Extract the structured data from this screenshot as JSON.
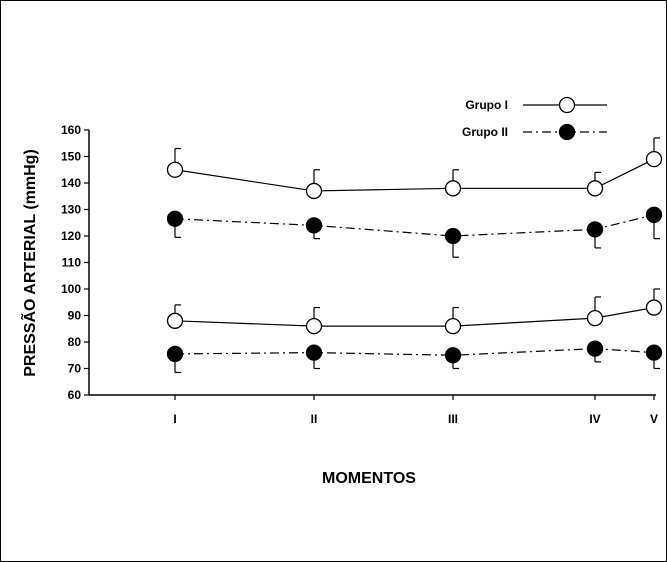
{
  "chart_data": {
    "type": "line",
    "categories": [
      "I",
      "II",
      "III",
      "IV",
      "V"
    ],
    "xlabel": "MOMENTOS",
    "ylabel": "PRESSÃO ARTERIAL (mmHg)",
    "ylim": [
      60,
      160
    ],
    "yticks": [
      60,
      70,
      80,
      90,
      100,
      110,
      120,
      130,
      140,
      150,
      160
    ],
    "grid": false,
    "legend_position": "top-right",
    "series": [
      {
        "name": "Grupo I",
        "group": "Grupo I",
        "level": "upper",
        "marker": "open-circle",
        "line": "solid",
        "values": [
          145,
          137,
          138,
          138,
          149
        ],
        "error_up": [
          8,
          8,
          7,
          6,
          8
        ]
      },
      {
        "name": "Grupo II",
        "group": "Grupo II",
        "level": "upper",
        "marker": "filled-circle",
        "line": "dash-dot",
        "values": [
          126.5,
          124,
          120,
          122.5,
          128
        ],
        "error_down": [
          7,
          5,
          8,
          7,
          9
        ]
      },
      {
        "name": "Grupo I",
        "group": "Grupo I",
        "level": "lower",
        "marker": "open-circle",
        "line": "solid",
        "values": [
          88,
          86,
          86,
          89,
          93
        ],
        "error_up": [
          6,
          7,
          7,
          8,
          7
        ]
      },
      {
        "name": "Grupo II",
        "group": "Grupo II",
        "level": "lower",
        "marker": "filled-circle",
        "line": "dash-dot",
        "values": [
          75.5,
          76,
          75,
          77.5,
          76
        ],
        "error_down": [
          7,
          6,
          5,
          5,
          6
        ]
      }
    ],
    "legend": [
      {
        "label": "Grupo I",
        "marker": "open-circle",
        "line": "solid"
      },
      {
        "label": "Grupo II",
        "marker": "filled-circle",
        "line": "dash-dot"
      }
    ]
  },
  "colors": {
    "ink": "#000000",
    "background": "#ffffff"
  }
}
